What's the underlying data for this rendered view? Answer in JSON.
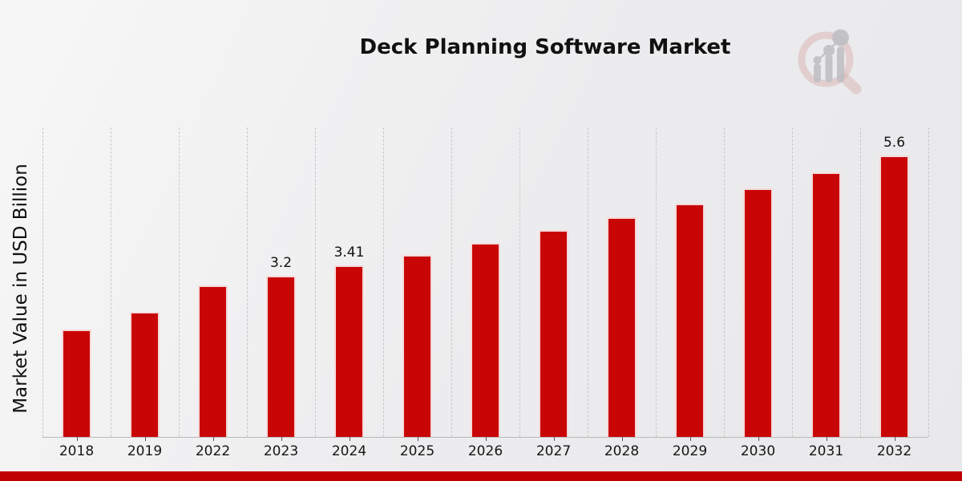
{
  "header": {
    "title": "Deck Planning Software Market",
    "logo": "market-research-magnifier-logo"
  },
  "chart_data": {
    "type": "bar",
    "title": "Deck Planning Software Market",
    "xlabel": "",
    "ylabel": "Market Value in USD Billion",
    "categories": [
      "2018",
      "2019",
      "2022",
      "2023",
      "2024",
      "2025",
      "2026",
      "2027",
      "2028",
      "2029",
      "2030",
      "2031",
      "2032"
    ],
    "values": [
      2.14,
      2.49,
      3.01,
      3.2,
      3.41,
      3.63,
      3.86,
      4.11,
      4.37,
      4.64,
      4.94,
      5.26,
      5.6
    ],
    "value_labels": [
      "",
      "",
      "",
      "3.2",
      "3.41",
      "",
      "",
      "",
      "",
      "",
      "",
      "",
      "5.6"
    ],
    "unit": "USD Billion",
    "ylim": [
      0,
      6.16
    ],
    "grid": "vertical-dashed",
    "legend": "none",
    "bar_color": "#c90606",
    "gridline_color": "#c7c7c7"
  },
  "footer": {
    "accent_color": "#c00000"
  }
}
